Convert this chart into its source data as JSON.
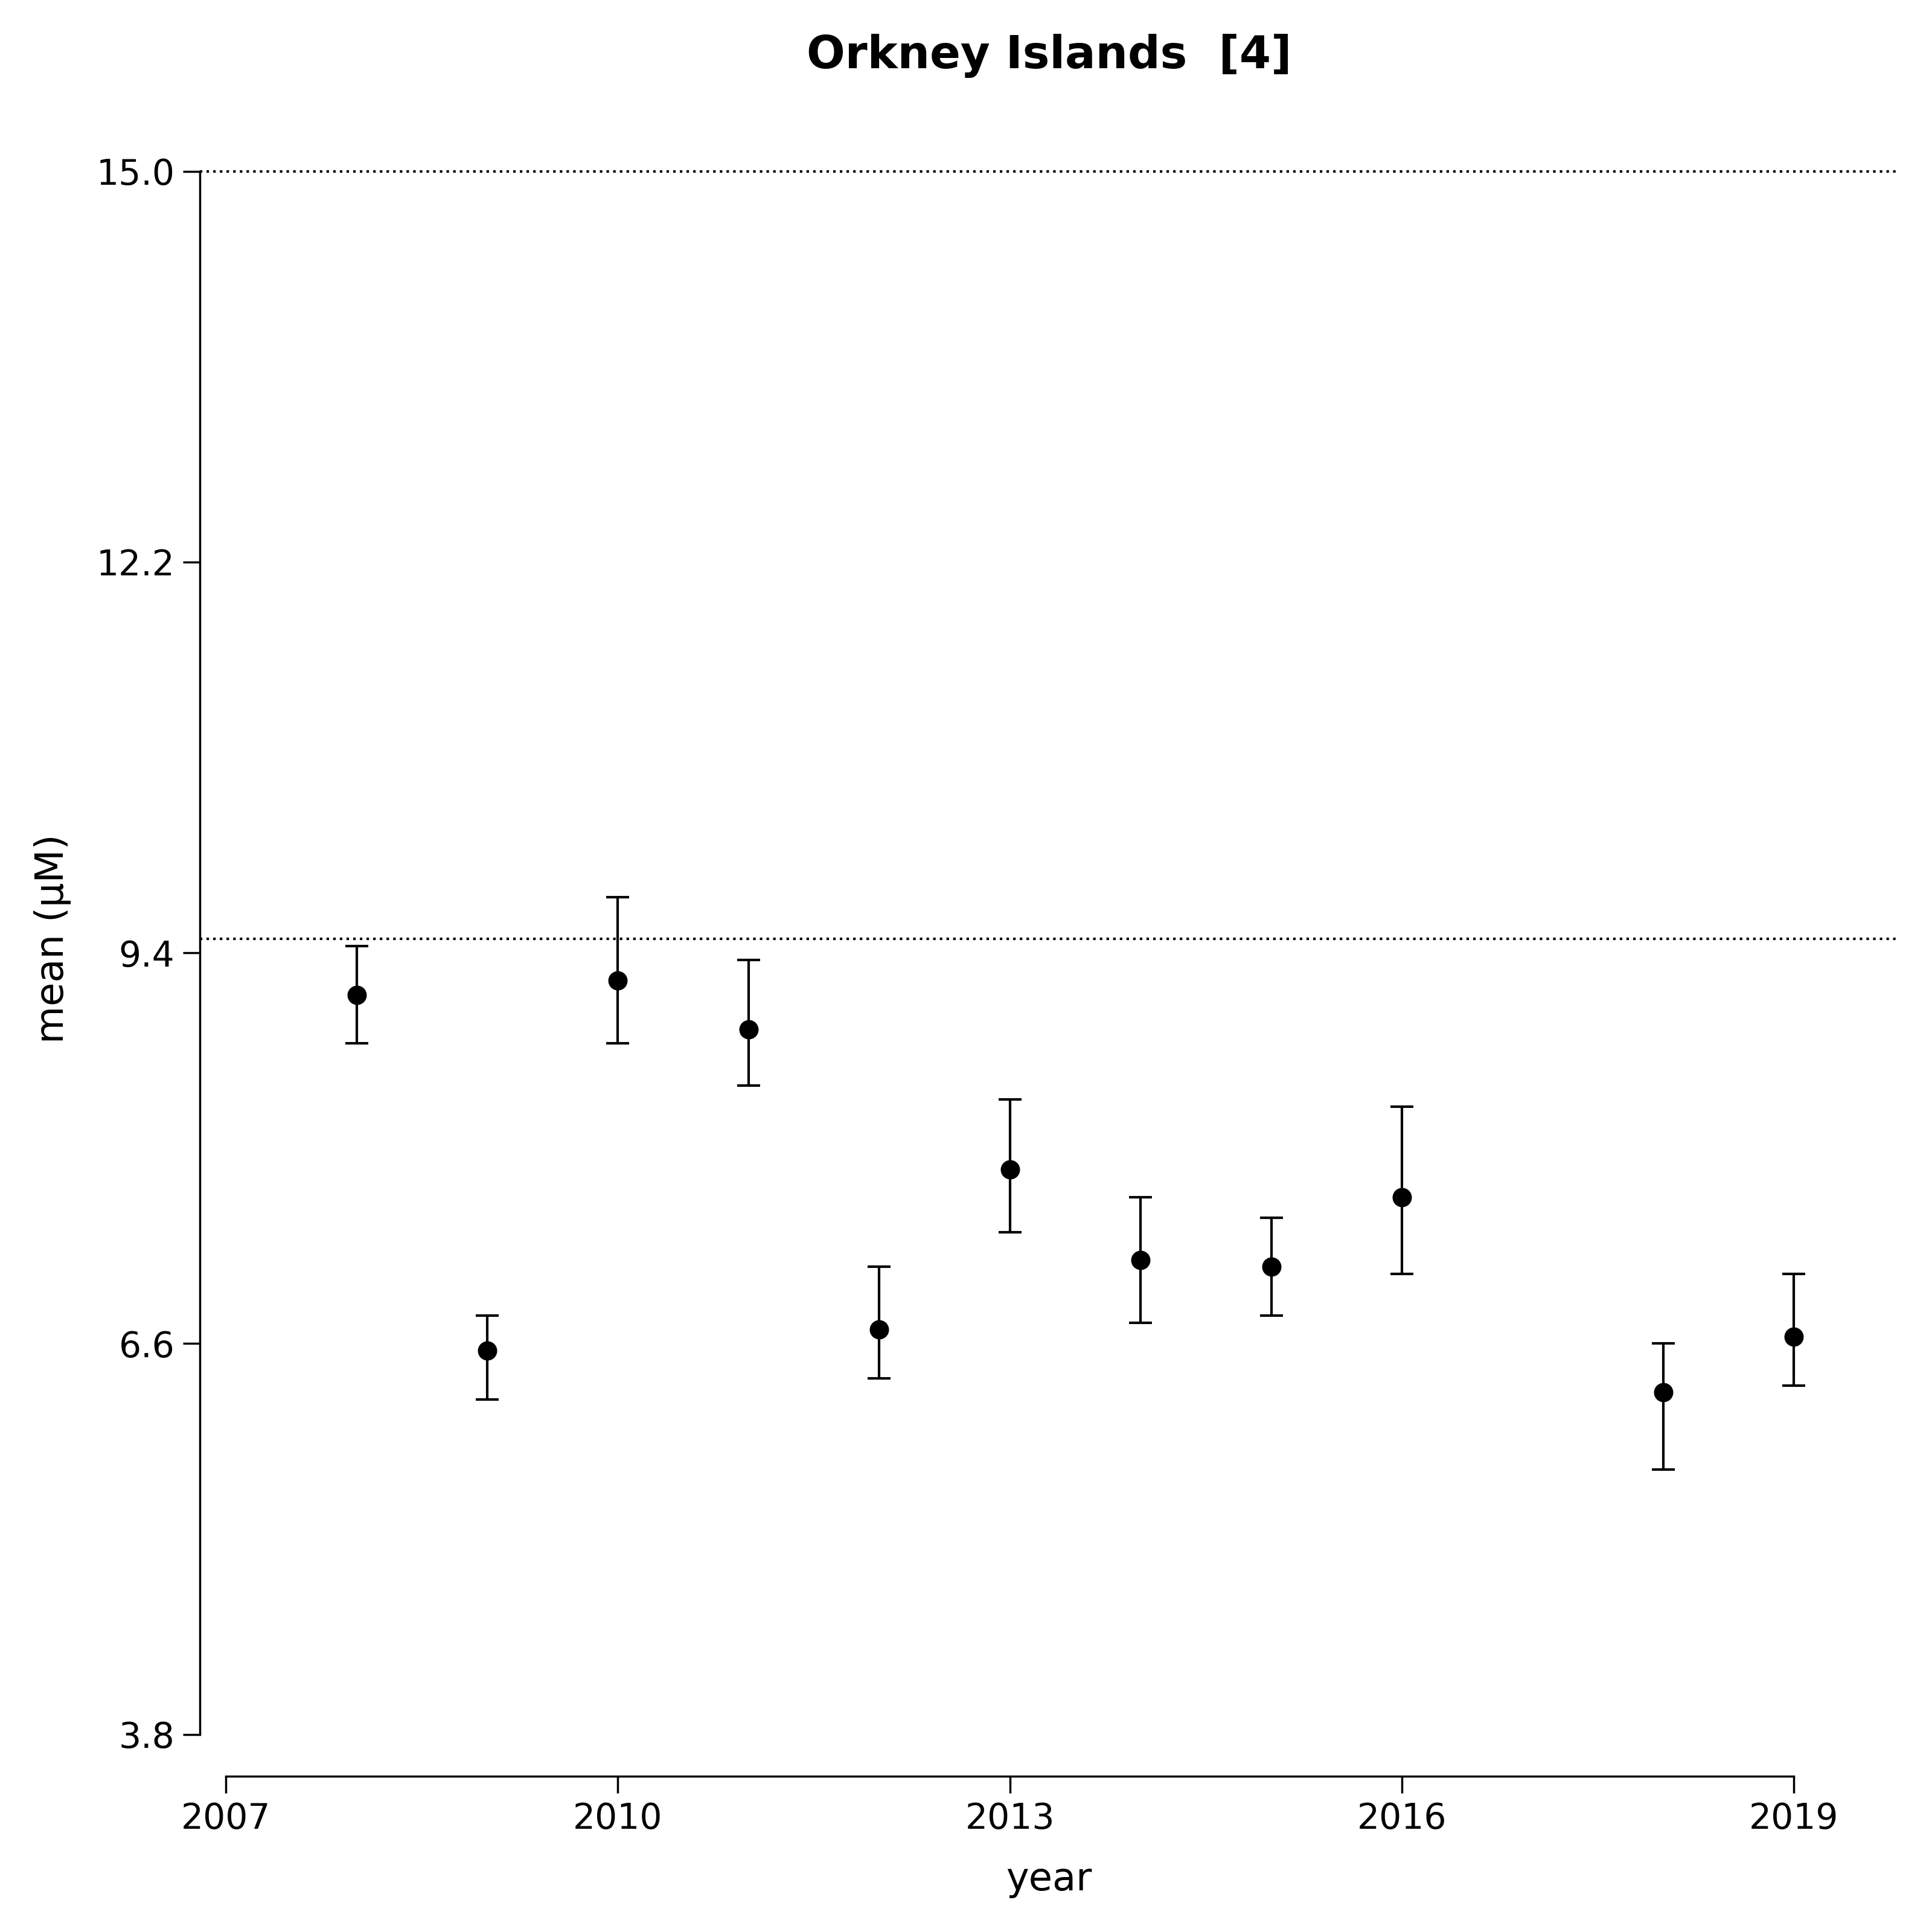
{
  "title": "Orkney Islands  [4]",
  "xlabel": "year",
  "ylabel": "mean (μM)",
  "years": [
    2008,
    2009,
    2010,
    2011,
    2012,
    2013,
    2014,
    2015,
    2016,
    2018,
    2019
  ],
  "means": [
    9.1,
    6.55,
    9.2,
    8.85,
    6.7,
    7.85,
    7.2,
    7.15,
    7.65,
    6.25,
    6.65
  ],
  "errors_upper": [
    0.35,
    0.25,
    0.6,
    0.5,
    0.45,
    0.5,
    0.45,
    0.35,
    0.65,
    0.35,
    0.45
  ],
  "errors_lower": [
    0.35,
    0.35,
    0.45,
    0.4,
    0.35,
    0.45,
    0.45,
    0.35,
    0.55,
    0.55,
    0.35
  ],
  "hline1": 15.0,
  "hline2": 9.5,
  "ylim": [
    3.5,
    15.5
  ],
  "xlim": [
    2006.8,
    2019.8
  ],
  "yticks": [
    3.8,
    6.6,
    9.4,
    12.2,
    15.0
  ],
  "xticks": [
    2007,
    2010,
    2013,
    2016,
    2019
  ],
  "title_fontsize": 54,
  "label_fontsize": 46,
  "tick_fontsize": 42,
  "marker_size": 22,
  "line_width": 3.0,
  "cap_size": 14,
  "elinewidth": 3.0
}
